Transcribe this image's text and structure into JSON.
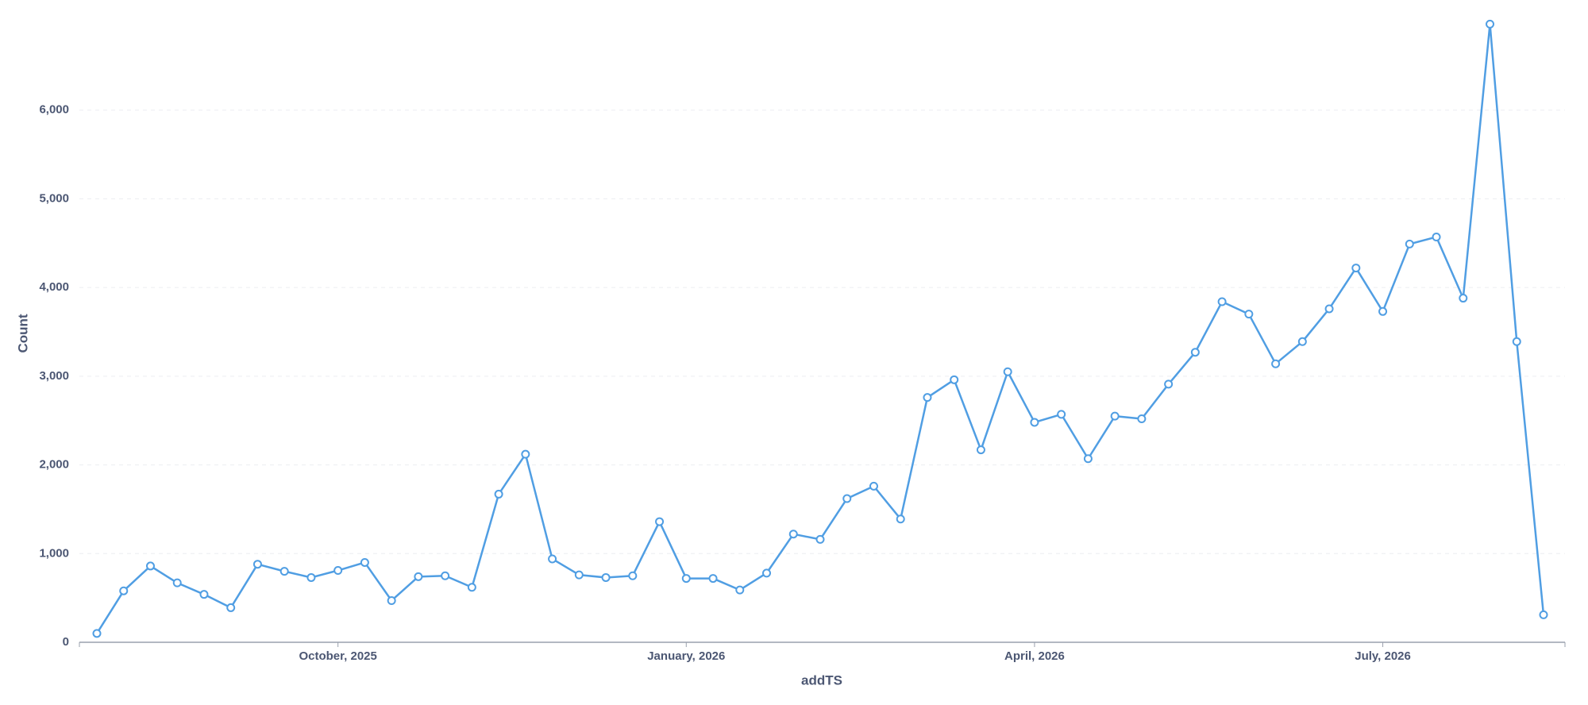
{
  "chart_data": {
    "type": "line",
    "x_label": "addTS",
    "y_label": "Count",
    "categories": [
      null,
      null,
      null,
      null,
      null,
      null,
      null,
      null,
      null,
      "October, 2025",
      null,
      null,
      null,
      null,
      null,
      null,
      null,
      null,
      null,
      null,
      null,
      null,
      "January, 2026",
      null,
      null,
      null,
      null,
      null,
      null,
      null,
      null,
      null,
      null,
      null,
      null,
      "April, 2026",
      null,
      null,
      null,
      null,
      null,
      null,
      null,
      null,
      null,
      null,
      null,
      null,
      "July, 2026",
      null,
      null,
      null,
      null,
      null,
      null
    ],
    "series": [
      {
        "name": "Count",
        "color": "#509ee3",
        "values": [
          100,
          580,
          860,
          670,
          540,
          390,
          880,
          800,
          730,
          810,
          900,
          470,
          740,
          750,
          620,
          1670,
          2120,
          940,
          760,
          730,
          750,
          1360,
          720,
          720,
          590,
          780,
          1220,
          1160,
          1620,
          1760,
          1390,
          2760,
          2960,
          2170,
          3050,
          2480,
          2570,
          2070,
          2550,
          2520,
          2910,
          3270,
          3840,
          3700,
          3140,
          3390,
          3760,
          4220,
          3730,
          4490,
          4570,
          3880,
          6970,
          3390,
          310
        ]
      }
    ],
    "ylim": [
      0,
      7000
    ],
    "yticks": [
      0,
      {
        "value": 1000,
        "label": "1,000"
      },
      {
        "value": 2000,
        "label": "2,000"
      },
      {
        "value": 3000,
        "label": "3,000"
      },
      {
        "value": 4000,
        "label": "4,000"
      },
      {
        "value": 5000,
        "label": "5,000"
      },
      {
        "value": 6000,
        "label": "6,000"
      }
    ],
    "grid": true
  }
}
